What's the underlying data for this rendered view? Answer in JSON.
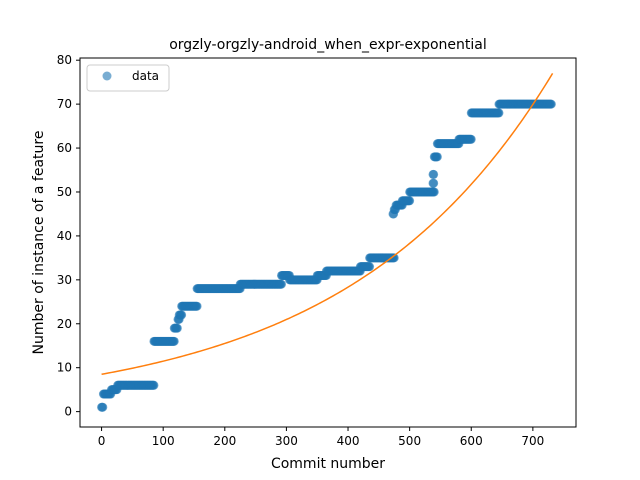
{
  "chart_data": {
    "type": "scatter",
    "title": "orgzly-orgzly-android_when_expr-exponential",
    "xlabel": "Commit number",
    "ylabel": "Number of instance of a feature",
    "xlim": [
      -35,
      770
    ],
    "ylim": [
      -3.5,
      80.5
    ],
    "xticks": [
      0,
      100,
      200,
      300,
      400,
      500,
      600,
      700
    ],
    "yticks": [
      0,
      10,
      20,
      30,
      40,
      50,
      60,
      70,
      80
    ],
    "grid": false,
    "legend": {
      "position": "upper-left",
      "entries": [
        "data"
      ]
    },
    "colors": {
      "data": "#1f77b4",
      "fit": "#ff7f0e"
    },
    "series": [
      {
        "name": "data",
        "kind": "scatter",
        "segments": [
          {
            "x": [
              0,
              2
            ],
            "y": 1
          },
          {
            "x": [
              3,
              15
            ],
            "y": 4
          },
          {
            "x": [
              16,
              25
            ],
            "y": 5
          },
          {
            "x": [
              26,
              85
            ],
            "y": 6
          },
          {
            "x": [
              85,
              118
            ],
            "y": 16
          },
          {
            "x": [
              118,
              123
            ],
            "y": 19
          },
          {
            "x": [
              124,
              126
            ],
            "y": 21
          },
          {
            "x": [
              126,
              130
            ],
            "y": 22
          },
          {
            "x": [
              130,
              155
            ],
            "y": 24
          },
          {
            "x": [
              155,
              225
            ],
            "y": 28
          },
          {
            "x": [
              225,
              292
            ],
            "y": 29
          },
          {
            "x": [
              292,
              305
            ],
            "y": 31
          },
          {
            "x": [
              305,
              350
            ],
            "y": 30
          },
          {
            "x": [
              350,
              365
            ],
            "y": 31
          },
          {
            "x": [
              365,
              420
            ],
            "y": 32
          },
          {
            "x": [
              420,
              435
            ],
            "y": 33
          },
          {
            "x": [
              435,
              475
            ],
            "y": 35
          },
          {
            "x": [
              473,
              474
            ],
            "y": 45
          },
          {
            "x": [
              475,
              477
            ],
            "y": 46
          },
          {
            "x": [
              478,
              488
            ],
            "y": 47
          },
          {
            "x": [
              488,
              500
            ],
            "y": 48
          },
          {
            "x": [
              500,
              540
            ],
            "y": 50
          },
          {
            "x": [
              538,
              539
            ],
            "y": 52
          },
          {
            "x": [
              538,
              539
            ],
            "y": 54
          },
          {
            "x": [
              540,
              545
            ],
            "y": 58
          },
          {
            "x": [
              545,
              580
            ],
            "y": 61
          },
          {
            "x": [
              580,
              600
            ],
            "y": 62
          },
          {
            "x": [
              600,
              645
            ],
            "y": 68
          },
          {
            "x": [
              645,
              730
            ],
            "y": 70
          }
        ]
      },
      {
        "name": "",
        "kind": "line",
        "model": "exponential",
        "x_range": [
          0,
          732
        ],
        "y_start": 8.5,
        "y_end": 77
      }
    ]
  }
}
